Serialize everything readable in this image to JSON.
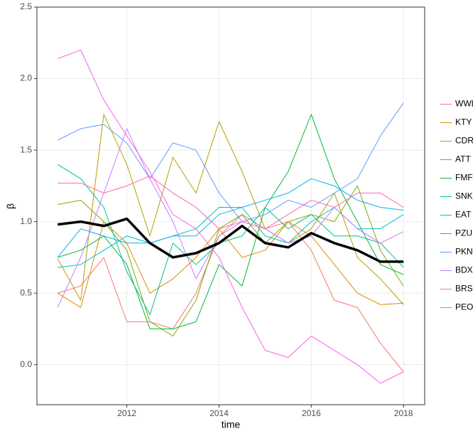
{
  "chart_data": {
    "type": "line",
    "x_label": "time",
    "y_label": "β",
    "x": [
      2010.5,
      2011,
      2011.5,
      2012,
      2012.5,
      2013,
      2013.5,
      2014,
      2014.5,
      2015,
      2015.5,
      2016,
      2016.5,
      2017,
      2017.5,
      2018
    ],
    "xlim": [
      2010.05,
      2018.46
    ],
    "xticks": [
      2012,
      2014,
      2016,
      2018
    ],
    "ylim": [
      -0.28,
      2.5
    ],
    "yticks": [
      {
        "value": 0,
        "label": "0.0"
      },
      0.5,
      {
        "value": 1,
        "label": "1.0"
      },
      1.5,
      {
        "value": 2,
        "label": "2.0"
      },
      2.5
    ],
    "grid": true,
    "legend": "right",
    "series": [
      {
        "name": "WWL",
        "color": "#F8766D",
        "values": [
          0.5,
          0.55,
          0.75,
          0.3,
          0.3,
          0.25,
          0.5,
          0.9,
          1.05,
          0.95,
          1.0,
          0.8,
          0.45,
          0.4,
          0.15,
          -0.05
        ]
      },
      {
        "name": "KTY",
        "color": "#DE8C00",
        "values": [
          0.5,
          0.4,
          1.0,
          0.85,
          0.5,
          0.6,
          0.75,
          0.95,
          0.75,
          0.8,
          1.0,
          0.9,
          0.7,
          0.5,
          0.42,
          0.43
        ]
      },
      {
        "name": "CDR",
        "color": "#B79F00",
        "values": [
          0.74,
          0.45,
          1.75,
          1.4,
          0.9,
          1.45,
          1.2,
          1.7,
          1.35,
          0.95,
          0.85,
          0.95,
          1.2,
          0.75,
          0.6,
          0.42
        ]
      },
      {
        "name": "ATT",
        "color": "#7CAE00",
        "values": [
          1.12,
          1.15,
          1.0,
          0.8,
          0.3,
          0.2,
          0.45,
          0.95,
          1.05,
          0.85,
          1.0,
          1.05,
          1.0,
          1.25,
          0.8,
          0.55
        ]
      },
      {
        "name": "FMF",
        "color": "#00BA38",
        "values": [
          0.75,
          0.8,
          0.9,
          0.7,
          0.25,
          0.25,
          0.3,
          0.7,
          0.55,
          1.1,
          1.35,
          1.75,
          1.3,
          1.0,
          0.7,
          0.63
        ]
      },
      {
        "name": "SNK",
        "color": "#00C08B",
        "values": [
          1.4,
          1.3,
          1.1,
          0.65,
          0.35,
          0.85,
          0.7,
          0.85,
          0.9,
          1.1,
          0.95,
          1.05,
          0.9,
          0.9,
          0.85,
          0.68
        ]
      },
      {
        "name": "EAT",
        "color": "#00BFC4",
        "values": [
          0.68,
          0.7,
          0.8,
          0.9,
          0.85,
          0.9,
          0.95,
          1.1,
          1.1,
          0.9,
          0.85,
          1.0,
          1.1,
          0.95,
          0.95,
          1.05
        ]
      },
      {
        "name": "PZU",
        "color": "#00B4F0",
        "values": [
          0.75,
          0.95,
          0.9,
          0.85,
          0.85,
          0.9,
          0.9,
          1.05,
          1.1,
          1.15,
          1.2,
          1.3,
          1.25,
          1.15,
          1.1,
          1.08
        ]
      },
      {
        "name": "PKN",
        "color": "#619CFF",
        "values": [
          1.57,
          1.65,
          1.68,
          1.55,
          1.3,
          1.55,
          1.5,
          1.2,
          1.0,
          1.05,
          1.15,
          1.1,
          1.2,
          1.3,
          1.6,
          1.83
        ]
      },
      {
        "name": "BDX",
        "color": "#C77CFF",
        "values": [
          0.4,
          0.75,
          1.2,
          1.65,
          1.3,
          1.0,
          0.6,
          0.9,
          1.0,
          0.95,
          0.85,
          0.9,
          1.1,
          0.95,
          0.85,
          0.93
        ]
      },
      {
        "name": "BRS",
        "color": "#F564E3",
        "values": [
          2.14,
          2.2,
          1.85,
          1.6,
          1.35,
          1.05,
          0.95,
          0.75,
          0.4,
          0.1,
          0.05,
          0.2,
          0.1,
          0.0,
          -0.13,
          -0.05
        ]
      },
      {
        "name": "PEO",
        "color": "#FF64B0",
        "values": [
          1.27,
          1.27,
          1.2,
          1.25,
          1.32,
          1.2,
          1.1,
          0.95,
          1.0,
          0.95,
          1.05,
          1.15,
          1.1,
          1.2,
          1.2,
          1.1
        ]
      }
    ],
    "mean_line": {
      "color": "#000000",
      "values": [
        0.98,
        1.0,
        0.97,
        1.02,
        0.85,
        0.75,
        0.78,
        0.85,
        0.97,
        0.85,
        0.82,
        0.92,
        0.85,
        0.8,
        0.72,
        0.72
      ]
    }
  }
}
